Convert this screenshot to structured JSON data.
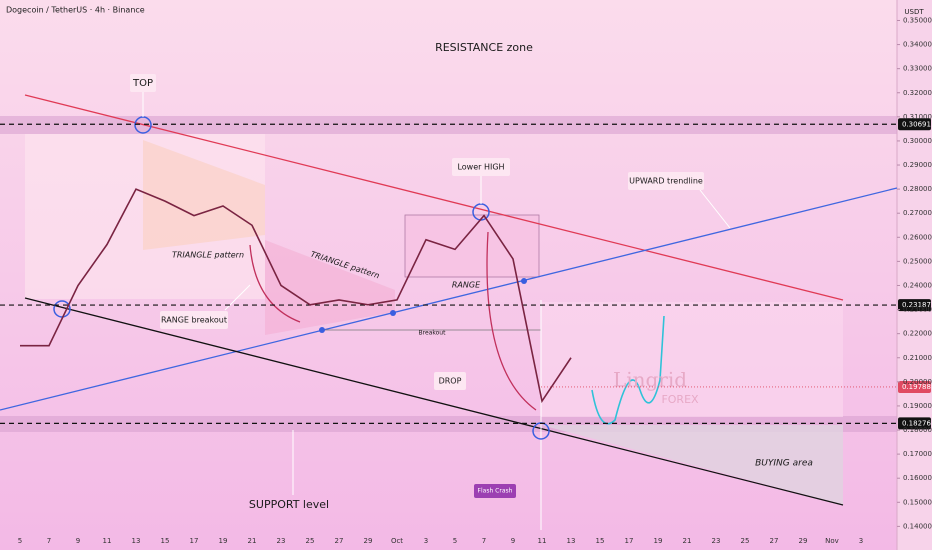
{
  "chart_data": {
    "type": "line",
    "header": "Dogecoin / TetherUS · 4h · Binance",
    "axis_unit": "USDT",
    "categories": [
      "5",
      "7",
      "9",
      "11",
      "13",
      "15",
      "17",
      "19",
      "21",
      "23",
      "25",
      "27",
      "29",
      "Oct",
      "3",
      "5",
      "7",
      "9",
      "11",
      "13",
      "15",
      "17",
      "19",
      "21",
      "23",
      "25",
      "27",
      "29",
      "Nov",
      "3"
    ],
    "series": [
      {
        "name": "DOGEUSDT",
        "color": "#7a2442",
        "values": [
          0.215,
          0.215,
          0.24,
          0.257,
          0.28,
          0.275,
          0.269,
          0.273,
          0.265,
          0.24,
          0.232,
          0.234,
          0.232,
          0.234,
          0.259,
          0.255,
          0.269,
          0.251,
          0.192,
          0.21,
          null,
          null,
          null,
          null,
          null,
          null,
          null,
          null,
          null,
          null
        ]
      }
    ],
    "ylim": [
      0.1385,
      0.3585
    ],
    "yticks": [
      {
        "value": 0.14,
        "label": "0.14000"
      },
      {
        "value": 0.15,
        "label": "0.15000"
      },
      {
        "value": 0.16,
        "label": "0.16000"
      },
      {
        "value": 0.17,
        "label": "0.17000"
      },
      {
        "value": 0.18,
        "label": "0.18000"
      },
      {
        "value": 0.19,
        "label": "0.19000"
      },
      {
        "value": 0.2,
        "label": "0.20000"
      },
      {
        "value": 0.21,
        "label": "0.21000"
      },
      {
        "value": 0.22,
        "label": "0.22000"
      },
      {
        "value": 0.23,
        "label": "0.23000"
      },
      {
        "value": 0.24,
        "label": "0.24000"
      },
      {
        "value": 0.25,
        "label": "0.25000"
      },
      {
        "value": 0.26,
        "label": "0.26000"
      },
      {
        "value": 0.27,
        "label": "0.27000"
      },
      {
        "value": 0.28,
        "label": "0.28000"
      },
      {
        "value": 0.29,
        "label": "0.29000"
      },
      {
        "value": 0.3,
        "label": "0.30000"
      },
      {
        "value": 0.31,
        "label": "0.31000"
      },
      {
        "value": 0.32,
        "label": "0.32000"
      },
      {
        "value": 0.33,
        "label": "0.33000"
      },
      {
        "value": 0.34,
        "label": "0.34000"
      },
      {
        "value": 0.35,
        "label": "0.35000"
      }
    ],
    "price_levels": [
      {
        "value": 0.30691,
        "label": "0.30691",
        "color": "#111111",
        "dashed": true
      },
      {
        "value": 0.23187,
        "label": "0.23187",
        "color": "#111111",
        "dashed": true
      },
      {
        "value": 0.19788,
        "label": "0.19788",
        "color": "#e04a62",
        "dashed": false
      },
      {
        "value": 0.18276,
        "label": "0.18276",
        "color": "#111111",
        "dashed": true
      }
    ],
    "annotations": [
      "RESISTANCE zone",
      "TOP",
      "TRIANGLE pattern",
      "TRIANGLE pattern",
      "RANGE breakout",
      "Lower HIGH",
      "RANGE",
      "Breakout",
      "DROP",
      "UPWARD trendline",
      "SUPPORT level",
      "BUYING area",
      "Flash Crash",
      "Lingrid",
      "FOREX"
    ]
  }
}
